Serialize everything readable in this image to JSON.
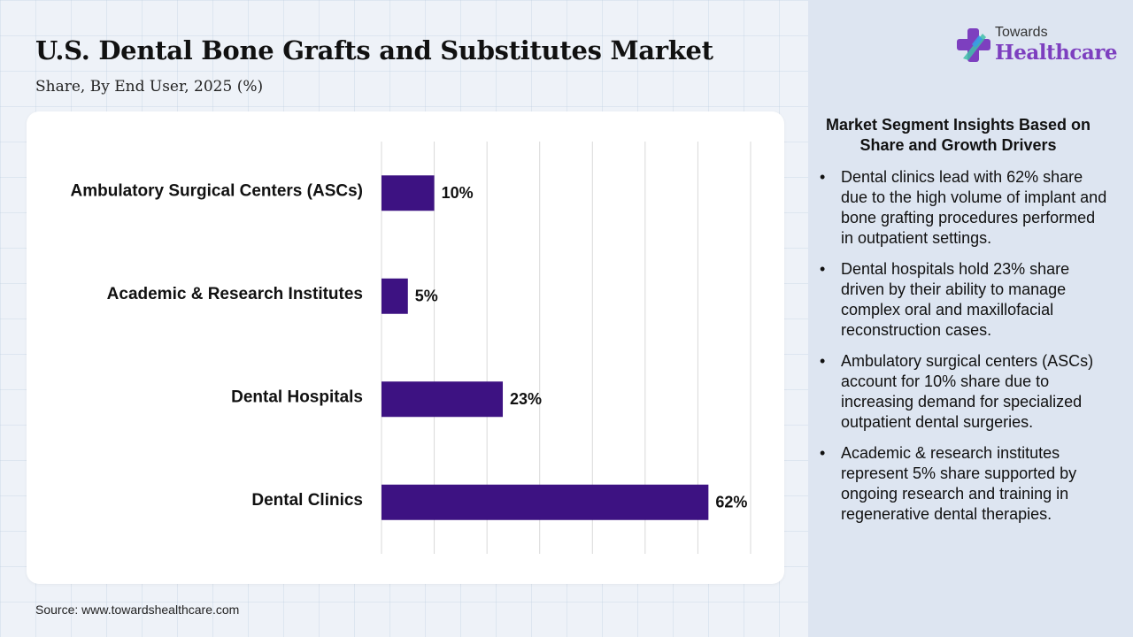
{
  "header": {
    "title": "U.S. Dental Bone Grafts and Substitutes Market",
    "subtitle": "Share, By End User, 2025 (%)"
  },
  "logo": {
    "top": "Towards",
    "main": "Healthcare",
    "icon": "cross-icon",
    "colors": [
      "#7d3fbf",
      "#3a9be6",
      "#3fbfa8"
    ]
  },
  "source": "Source: www.towardshealthcare.com",
  "insights": {
    "heading": "Market Segment Insights Based on Share and Growth Drivers",
    "items": [
      "Dental clinics lead with 62% share due to the high volume of implant and bone grafting procedures performed in outpatient settings.",
      "Dental hospitals hold 23% share driven by their ability to manage complex oral and maxillofacial reconstruction cases.",
      "Ambulatory surgical centers (ASCs) account for 10% share due to increasing demand for specialized outpatient dental surgeries.",
      "Academic & research institutes represent 5% share supported by ongoing research and training in regenerative dental therapies."
    ]
  },
  "chart_data": {
    "type": "bar",
    "orientation": "horizontal",
    "categories": [
      "Ambulatory Surgical Centers (ASCs)",
      "Academic & Research Institutes",
      "Dental Hospitals",
      "Dental Clinics"
    ],
    "values": [
      10,
      5,
      23,
      62
    ],
    "value_suffix": "%",
    "xlim": [
      0,
      70
    ],
    "grid": "vertical",
    "bar_color": "#3d1282"
  }
}
